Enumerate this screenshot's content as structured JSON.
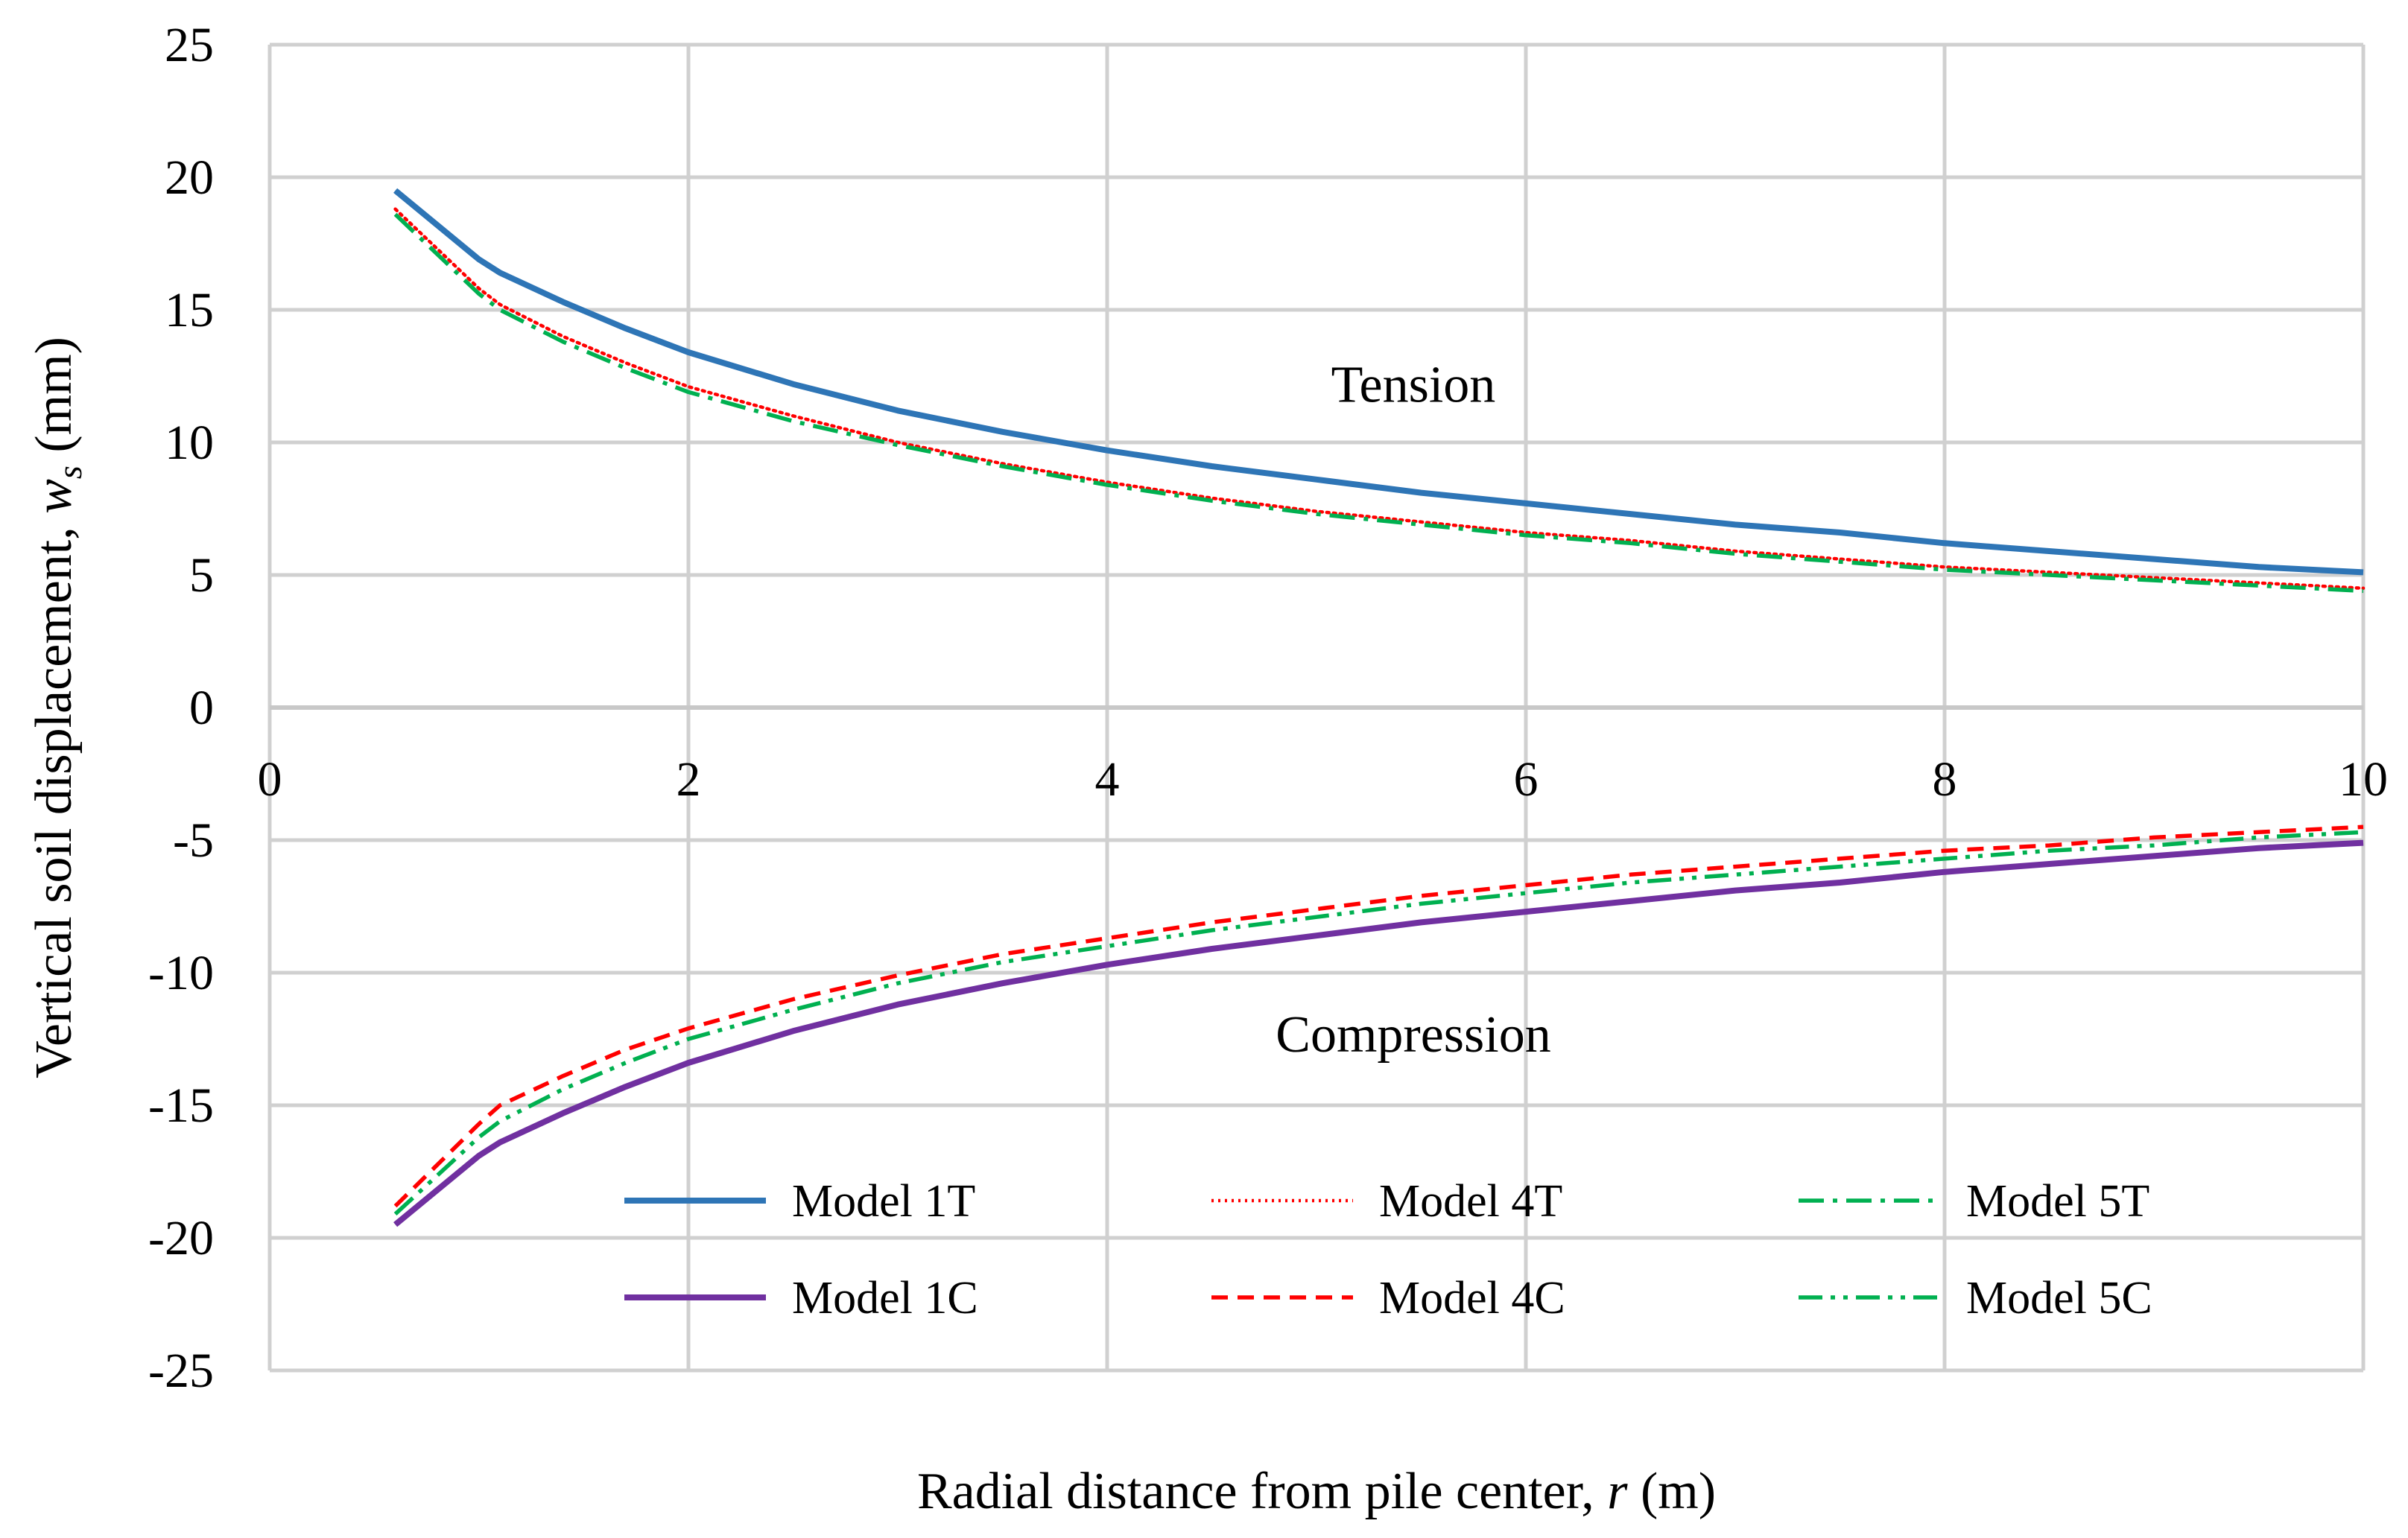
{
  "chart_data": {
    "type": "line",
    "title": "",
    "xlabel": {
      "prefix": "Radial distance from pile center, ",
      "var": "r",
      "suffix": " (m)"
    },
    "ylabel": {
      "prefix": "Vertical soil displacement, ",
      "var": "w",
      "sub": "s",
      "suffix": " (mm)"
    },
    "xlim": [
      0,
      10
    ],
    "ylim": [
      -25,
      25
    ],
    "xticks": [
      0,
      2,
      4,
      6,
      8,
      10
    ],
    "xtick_labels": [
      "0",
      "2",
      "4",
      "6",
      "8",
      "10"
    ],
    "yticks": [
      25,
      20,
      15,
      10,
      5,
      0,
      -5,
      -10,
      -15,
      -20,
      -25
    ],
    "ytick_labels": [
      "25",
      "20",
      "15",
      "10",
      "5",
      "0",
      "-5",
      "-10",
      "-15",
      "-20",
      "-25"
    ],
    "grid": true,
    "annotations": [
      {
        "text": "Tension",
        "x": 5.0,
        "y": 12.2
      },
      {
        "text": "Compression",
        "x": 5.0,
        "y": -12.3
      }
    ],
    "x": [
      0.6,
      1.0,
      1.1,
      1.4,
      1.7,
      2.0,
      2.5,
      3.0,
      3.5,
      4.0,
      4.5,
      5.0,
      5.5,
      6.0,
      6.5,
      7.0,
      7.5,
      8.0,
      8.5,
      9.0,
      9.5,
      10.0
    ],
    "series": [
      {
        "name": "Model 1T",
        "color": "#2e75b6",
        "style": "solid",
        "values": [
          19.5,
          16.9,
          16.4,
          15.3,
          14.3,
          13.4,
          12.2,
          11.2,
          10.4,
          9.7,
          9.1,
          8.6,
          8.1,
          7.7,
          7.3,
          6.9,
          6.6,
          6.2,
          5.9,
          5.6,
          5.3,
          5.1
        ]
      },
      {
        "name": "Model 4T",
        "color": "#ff0000",
        "style": "dotted",
        "values": [
          18.8,
          15.8,
          15.2,
          14.0,
          13.0,
          12.1,
          11.0,
          10.0,
          9.2,
          8.5,
          7.9,
          7.4,
          7.0,
          6.6,
          6.3,
          5.9,
          5.6,
          5.3,
          5.1,
          4.9,
          4.7,
          4.5
        ]
      },
      {
        "name": "Model 5T",
        "color": "#00b050",
        "style": "dashdot",
        "values": [
          18.6,
          15.6,
          15.0,
          13.8,
          12.8,
          11.9,
          10.8,
          9.9,
          9.1,
          8.4,
          7.8,
          7.3,
          6.9,
          6.5,
          6.2,
          5.8,
          5.5,
          5.2,
          5.0,
          4.8,
          4.6,
          4.4
        ]
      },
      {
        "name": "Model 1C",
        "color": "#7030a0",
        "style": "solid",
        "values": [
          -19.5,
          -16.9,
          -16.4,
          -15.3,
          -14.3,
          -13.4,
          -12.2,
          -11.2,
          -10.4,
          -9.7,
          -9.1,
          -8.6,
          -8.1,
          -7.7,
          -7.3,
          -6.9,
          -6.6,
          -6.2,
          -5.9,
          -5.6,
          -5.3,
          -5.1
        ]
      },
      {
        "name": "Model 4C",
        "color": "#ff0000",
        "style": "dashed",
        "values": [
          -18.8,
          -15.7,
          -15.0,
          -13.9,
          -12.9,
          -12.1,
          -11.0,
          -10.1,
          -9.3,
          -8.7,
          -8.1,
          -7.6,
          -7.1,
          -6.7,
          -6.3,
          -6.0,
          -5.7,
          -5.4,
          -5.2,
          -4.9,
          -4.7,
          -4.5
        ]
      },
      {
        "name": "Model 5C",
        "color": "#00b050",
        "style": "dashdotdot",
        "values": [
          -19.1,
          -16.2,
          -15.6,
          -14.4,
          -13.4,
          -12.5,
          -11.4,
          -10.4,
          -9.6,
          -9.0,
          -8.4,
          -7.9,
          -7.4,
          -7.0,
          -6.6,
          -6.3,
          -6.0,
          -5.7,
          -5.4,
          -5.2,
          -4.9,
          -4.7
        ]
      }
    ],
    "legend": {
      "placement": "bottom-inside",
      "columns": 3,
      "entries": [
        "Model 1T",
        "Model 4T",
        "Model 5T",
        "Model 1C",
        "Model 4C",
        "Model 5C"
      ]
    }
  }
}
